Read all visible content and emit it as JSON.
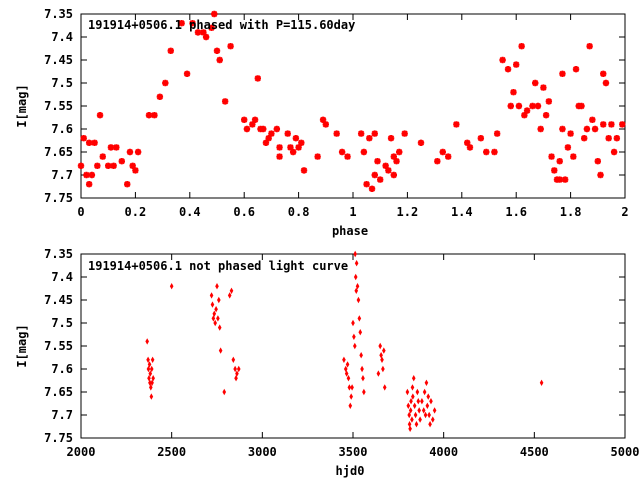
{
  "chart_data": [
    {
      "type": "scatter",
      "title": "191914+0506.1 phased with P=115.60day",
      "xlabel": "phase",
      "ylabel": "I[mag]",
      "xlim": [
        0,
        2
      ],
      "ylim": [
        7.35,
        7.75
      ],
      "y_inverted": true,
      "xticks": [
        "0",
        "0.2",
        "0.4",
        "0.6",
        "0.8",
        "1",
        "1.2",
        "1.4",
        "1.6",
        "1.8",
        "2"
      ],
      "yticks": [
        "7.35",
        "7.4",
        "7.45",
        "7.5",
        "7.55",
        "7.6",
        "7.65",
        "7.7",
        "7.75"
      ],
      "marker": "star",
      "color": "#ff0000",
      "points": [
        [
          0.0,
          7.68
        ],
        [
          0.01,
          7.62
        ],
        [
          0.02,
          7.7
        ],
        [
          0.03,
          7.63
        ],
        [
          0.03,
          7.72
        ],
        [
          0.04,
          7.7
        ],
        [
          0.05,
          7.63
        ],
        [
          0.06,
          7.68
        ],
        [
          0.07,
          7.57
        ],
        [
          0.08,
          7.66
        ],
        [
          0.1,
          7.68
        ],
        [
          0.11,
          7.64
        ],
        [
          0.12,
          7.68
        ],
        [
          0.13,
          7.64
        ],
        [
          0.15,
          7.67
        ],
        [
          0.17,
          7.72
        ],
        [
          0.18,
          7.65
        ],
        [
          0.19,
          7.68
        ],
        [
          0.2,
          7.69
        ],
        [
          0.21,
          7.65
        ],
        [
          0.25,
          7.57
        ],
        [
          0.27,
          7.57
        ],
        [
          0.29,
          7.53
        ],
        [
          0.31,
          7.5
        ],
        [
          0.33,
          7.43
        ],
        [
          0.37,
          7.37
        ],
        [
          0.39,
          7.48
        ],
        [
          0.41,
          7.37
        ],
        [
          0.43,
          7.39
        ],
        [
          0.45,
          7.39
        ],
        [
          0.46,
          7.4
        ],
        [
          0.48,
          7.38
        ],
        [
          0.49,
          7.35
        ],
        [
          0.5,
          7.43
        ],
        [
          0.51,
          7.45
        ],
        [
          0.53,
          7.54
        ],
        [
          0.55,
          7.42
        ],
        [
          0.6,
          7.58
        ],
        [
          0.61,
          7.6
        ],
        [
          0.63,
          7.59
        ],
        [
          0.64,
          7.58
        ],
        [
          0.65,
          7.49
        ],
        [
          0.66,
          7.6
        ],
        [
          0.67,
          7.6
        ],
        [
          0.68,
          7.63
        ],
        [
          0.69,
          7.62
        ],
        [
          0.7,
          7.61
        ],
        [
          0.72,
          7.6
        ],
        [
          0.73,
          7.64
        ],
        [
          0.73,
          7.66
        ],
        [
          0.76,
          7.61
        ],
        [
          0.77,
          7.64
        ],
        [
          0.78,
          7.65
        ],
        [
          0.79,
          7.62
        ],
        [
          0.8,
          7.64
        ],
        [
          0.81,
          7.63
        ],
        [
          0.82,
          7.69
        ],
        [
          0.87,
          7.66
        ],
        [
          0.89,
          7.58
        ],
        [
          0.9,
          7.59
        ],
        [
          0.94,
          7.61
        ],
        [
          0.96,
          7.65
        ],
        [
          0.98,
          7.66
        ],
        [
          1.03,
          7.61
        ],
        [
          1.04,
          7.65
        ],
        [
          1.05,
          7.72
        ],
        [
          1.06,
          7.62
        ],
        [
          1.07,
          7.73
        ],
        [
          1.08,
          7.7
        ],
        [
          1.08,
          7.61
        ],
        [
          1.09,
          7.67
        ],
        [
          1.1,
          7.71
        ],
        [
          1.12,
          7.68
        ],
        [
          1.13,
          7.69
        ],
        [
          1.14,
          7.62
        ],
        [
          1.15,
          7.66
        ],
        [
          1.15,
          7.7
        ],
        [
          1.16,
          7.67
        ],
        [
          1.17,
          7.65
        ],
        [
          1.19,
          7.61
        ],
        [
          1.25,
          7.63
        ],
        [
          1.31,
          7.67
        ],
        [
          1.33,
          7.65
        ],
        [
          1.35,
          7.66
        ],
        [
          1.38,
          7.59
        ],
        [
          1.42,
          7.63
        ],
        [
          1.43,
          7.64
        ],
        [
          1.47,
          7.62
        ],
        [
          1.49,
          7.65
        ],
        [
          1.52,
          7.65
        ],
        [
          1.53,
          7.61
        ],
        [
          1.55,
          7.45
        ],
        [
          1.57,
          7.47
        ],
        [
          1.58,
          7.55
        ],
        [
          1.59,
          7.52
        ],
        [
          1.6,
          7.46
        ],
        [
          1.61,
          7.55
        ],
        [
          1.62,
          7.42
        ],
        [
          1.63,
          7.57
        ],
        [
          1.64,
          7.56
        ],
        [
          1.66,
          7.55
        ],
        [
          1.67,
          7.5
        ],
        [
          1.68,
          7.55
        ],
        [
          1.69,
          7.6
        ],
        [
          1.7,
          7.51
        ],
        [
          1.71,
          7.57
        ],
        [
          1.72,
          7.54
        ],
        [
          1.73,
          7.66
        ],
        [
          1.74,
          7.69
        ],
        [
          1.75,
          7.71
        ],
        [
          1.76,
          7.67
        ],
        [
          1.76,
          7.71
        ],
        [
          1.77,
          7.6
        ],
        [
          1.77,
          7.48
        ],
        [
          1.78,
          7.71
        ],
        [
          1.79,
          7.64
        ],
        [
          1.8,
          7.61
        ],
        [
          1.81,
          7.66
        ],
        [
          1.82,
          7.47
        ],
        [
          1.83,
          7.55
        ],
        [
          1.84,
          7.55
        ],
        [
          1.85,
          7.62
        ],
        [
          1.86,
          7.6
        ],
        [
          1.87,
          7.42
        ],
        [
          1.88,
          7.58
        ],
        [
          1.89,
          7.6
        ],
        [
          1.9,
          7.67
        ],
        [
          1.91,
          7.7
        ],
        [
          1.92,
          7.48
        ],
        [
          1.92,
          7.59
        ],
        [
          1.93,
          7.5
        ],
        [
          1.94,
          7.62
        ],
        [
          1.95,
          7.59
        ],
        [
          1.96,
          7.65
        ],
        [
          1.97,
          7.62
        ],
        [
          1.99,
          7.59
        ]
      ]
    },
    {
      "type": "scatter",
      "title": "191914+0506.1 not phased light curve",
      "xlabel": "hjd0",
      "ylabel": "I[mag]",
      "xlim": [
        2000,
        5000
      ],
      "ylim": [
        7.35,
        7.75
      ],
      "y_inverted": true,
      "xticks": [
        "2000",
        "2500",
        "3000",
        "3500",
        "4000",
        "4500",
        "5000"
      ],
      "yticks": [
        "7.35",
        "7.4",
        "7.45",
        "7.5",
        "7.55",
        "7.6",
        "7.65",
        "7.7",
        "7.75"
      ],
      "marker": "diamond",
      "color": "#ff0000",
      "points": [
        [
          2365,
          7.54
        ],
        [
          2370,
          7.58
        ],
        [
          2372,
          7.6
        ],
        [
          2375,
          7.62
        ],
        [
          2378,
          7.59
        ],
        [
          2380,
          7.63
        ],
        [
          2382,
          7.61
        ],
        [
          2385,
          7.64
        ],
        [
          2388,
          7.66
        ],
        [
          2390,
          7.6
        ],
        [
          2392,
          7.63
        ],
        [
          2395,
          7.58
        ],
        [
          2398,
          7.62
        ],
        [
          2500,
          7.42
        ],
        [
          2720,
          7.44
        ],
        [
          2725,
          7.46
        ],
        [
          2730,
          7.49
        ],
        [
          2735,
          7.48
        ],
        [
          2740,
          7.5
        ],
        [
          2745,
          7.47
        ],
        [
          2750,
          7.42
        ],
        [
          2755,
          7.49
        ],
        [
          2760,
          7.45
        ],
        [
          2765,
          7.51
        ],
        [
          2770,
          7.56
        ],
        [
          2790,
          7.65
        ],
        [
          2820,
          7.44
        ],
        [
          2830,
          7.43
        ],
        [
          2840,
          7.58
        ],
        [
          2850,
          7.6
        ],
        [
          2855,
          7.62
        ],
        [
          2860,
          7.61
        ],
        [
          2870,
          7.6
        ],
        [
          3450,
          7.58
        ],
        [
          3460,
          7.6
        ],
        [
          3465,
          7.61
        ],
        [
          3470,
          7.59
        ],
        [
          3475,
          7.62
        ],
        [
          3480,
          7.64
        ],
        [
          3485,
          7.68
        ],
        [
          3490,
          7.66
        ],
        [
          3495,
          7.64
        ],
        [
          3500,
          7.5
        ],
        [
          3505,
          7.53
        ],
        [
          3510,
          7.55
        ],
        [
          3512,
          7.35
        ],
        [
          3515,
          7.4
        ],
        [
          3518,
          7.43
        ],
        [
          3520,
          7.37
        ],
        [
          3525,
          7.42
        ],
        [
          3530,
          7.45
        ],
        [
          3535,
          7.49
        ],
        [
          3540,
          7.52
        ],
        [
          3545,
          7.57
        ],
        [
          3550,
          7.6
        ],
        [
          3555,
          7.62
        ],
        [
          3560,
          7.65
        ],
        [
          3640,
          7.61
        ],
        [
          3650,
          7.55
        ],
        [
          3655,
          7.57
        ],
        [
          3660,
          7.58
        ],
        [
          3665,
          7.6
        ],
        [
          3670,
          7.56
        ],
        [
          3675,
          7.64
        ],
        [
          3800,
          7.65
        ],
        [
          3805,
          7.68
        ],
        [
          3810,
          7.7
        ],
        [
          3812,
          7.72
        ],
        [
          3815,
          7.73
        ],
        [
          3818,
          7.69
        ],
        [
          3820,
          7.67
        ],
        [
          3825,
          7.71
        ],
        [
          3828,
          7.64
        ],
        [
          3830,
          7.66
        ],
        [
          3835,
          7.62
        ],
        [
          3840,
          7.68
        ],
        [
          3845,
          7.7
        ],
        [
          3850,
          7.72
        ],
        [
          3855,
          7.65
        ],
        [
          3860,
          7.67
        ],
        [
          3865,
          7.69
        ],
        [
          3870,
          7.71
        ],
        [
          3880,
          7.67
        ],
        [
          3890,
          7.69
        ],
        [
          3895,
          7.65
        ],
        [
          3900,
          7.7
        ],
        [
          3905,
          7.63
        ],
        [
          3910,
          7.68
        ],
        [
          3915,
          7.66
        ],
        [
          3920,
          7.7
        ],
        [
          3925,
          7.72
        ],
        [
          3930,
          7.67
        ],
        [
          3940,
          7.71
        ],
        [
          3950,
          7.69
        ],
        [
          4540,
          7.63
        ]
      ]
    }
  ]
}
